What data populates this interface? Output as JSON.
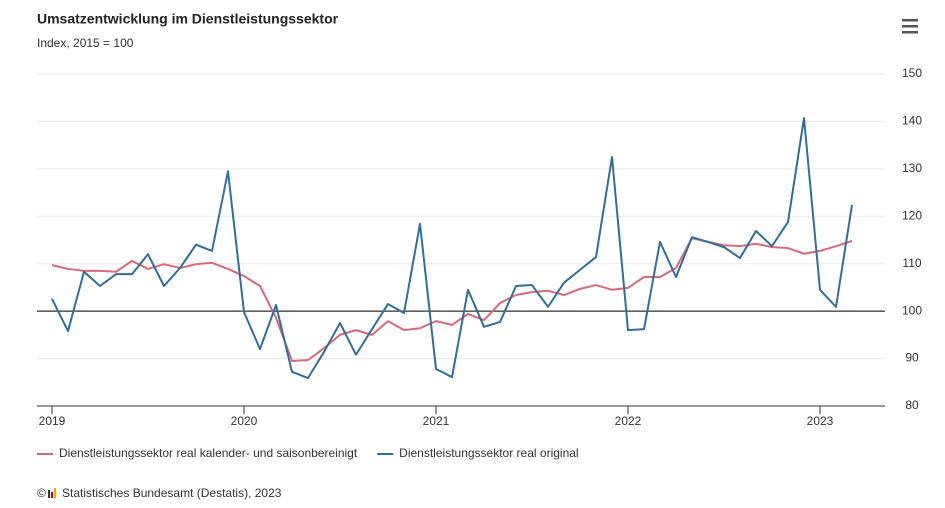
{
  "chart_data": {
    "type": "line",
    "title": "Umsatzentwicklung im Dienstleistungssektor",
    "subtitle": "Index, 2015 = 100",
    "categories": [
      "2019",
      null,
      null,
      null,
      null,
      null,
      null,
      null,
      null,
      null,
      null,
      null,
      "2020",
      null,
      null,
      null,
      null,
      null,
      null,
      null,
      null,
      null,
      null,
      null,
      "2021",
      null,
      null,
      null,
      null,
      null,
      null,
      null,
      null,
      null,
      null,
      null,
      "2022",
      null,
      null,
      null,
      null,
      null,
      null,
      null,
      null,
      null,
      null,
      null,
      "2023",
      null,
      null
    ],
    "series": [
      {
        "name": "Dienstleistungssektor real kalender- und saisonbereinigt",
        "color": "#d9687a",
        "values": [
          109.7,
          108.9,
          108.5,
          108.5,
          108.3,
          110.6,
          108.9,
          109.9,
          109.1,
          109.9,
          110.2,
          108.9,
          107.4,
          105.3,
          98.6,
          89.5,
          89.7,
          92.2,
          95.0,
          96.0,
          95.0,
          97.9,
          96.0,
          96.4,
          97.9,
          97.1,
          99.4,
          98.1,
          101.7,
          103.4,
          104.0,
          104.3,
          103.4,
          104.7,
          105.5,
          104.5,
          104.9,
          107.2,
          107.2,
          109.1,
          115.4,
          114.6,
          113.9,
          113.7,
          114.2,
          113.5,
          113.3,
          112.1,
          112.7,
          113.7,
          114.8
        ]
      },
      {
        "name": "Dienstleistungssektor real original",
        "color": "#2e6f9e",
        "values": [
          102.6,
          95.8,
          108.3,
          105.3,
          107.8,
          107.8,
          112.0,
          105.3,
          109.1,
          114.0,
          112.7,
          129.5,
          99.8,
          92.0,
          101.3,
          87.2,
          85.9,
          91.4,
          97.5,
          90.8,
          96.2,
          101.5,
          99.6,
          118.4,
          87.8,
          86.1,
          104.5,
          96.7,
          97.7,
          105.3,
          105.5,
          100.9,
          106.0,
          108.7,
          111.4,
          132.5,
          96.0,
          96.2,
          114.6,
          107.2,
          115.6,
          114.6,
          113.5,
          111.2,
          116.9,
          113.7,
          118.8,
          140.7,
          104.5,
          100.9,
          122.4
        ]
      }
    ],
    "ylim": [
      80,
      150
    ],
    "yticks": [
      80,
      90,
      100,
      110,
      120,
      130,
      140,
      150
    ],
    "grid": true,
    "baseline": 100,
    "legend": "bottom",
    "copyright": "©",
    "source": "Statistisches Bundesamt (Destatis), 2023"
  }
}
